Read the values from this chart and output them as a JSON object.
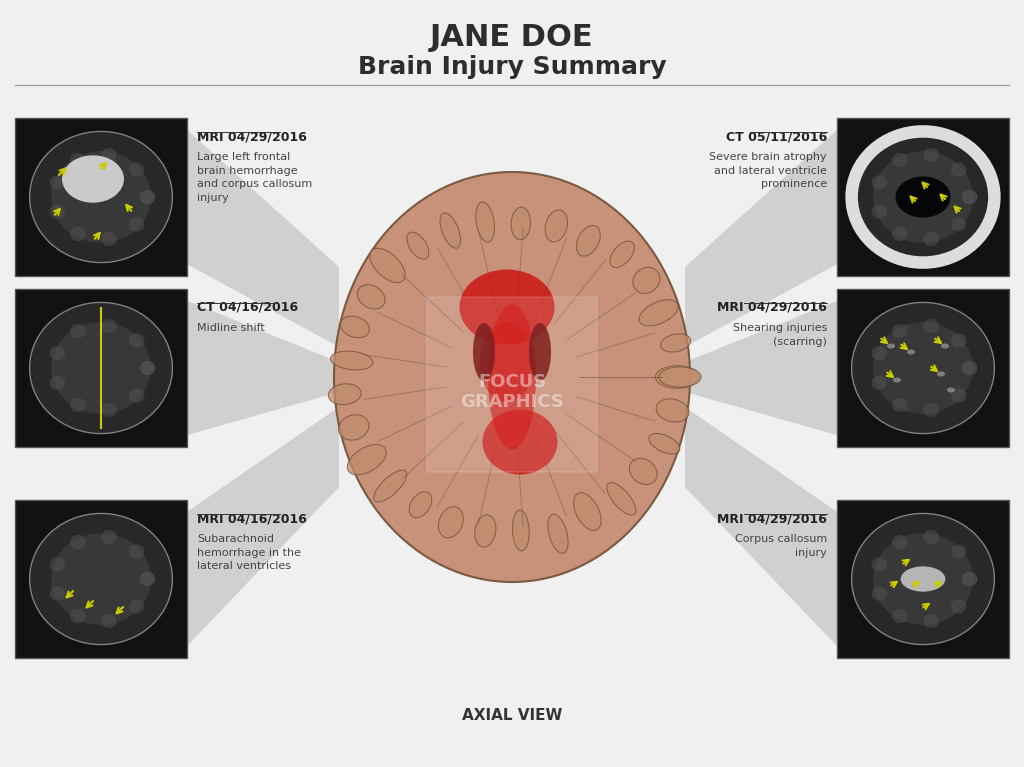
{
  "title_line1": "JANE DOE",
  "title_line2": "Brain Injury Summary",
  "title_color": "#2d2d2d",
  "background_color": "#f0f0f0",
  "left_panels": [
    {
      "label": "MRI 04/29/2016",
      "description": "Large left frontal\nbrain hemorrhage\nand corpus callosum\ninjury",
      "row": 0
    },
    {
      "label": "CT 04/16/2016",
      "description": "Midline shift",
      "row": 1
    },
    {
      "label": "MRI 04/16/2016",
      "description": "Subarachnoid\nhemorrhage in the\nlateral ventricles",
      "row": 2
    }
  ],
  "right_panels": [
    {
      "label": "CT 05/11/2016",
      "description": "Severe brain atrophy\nand lateral ventricle\nprominence",
      "row": 0
    },
    {
      "label": "MRI 04/29/2016",
      "description": "Shearing injuries\n(scarring)",
      "row": 1
    },
    {
      "label": "MRI 04/29/2016",
      "description": "Corpus callosum\ninjury",
      "row": 2
    }
  ],
  "axial_label": "AXIAL VIEW",
  "watermark_line1": "FOCUS",
  "watermark_line2": "GRAPHICS",
  "label_fontsize": 9,
  "desc_fontsize": 8,
  "title1_fontsize": 22,
  "title2_fontsize": 18,
  "axial_fontsize": 11,
  "label_color": "#222222",
  "desc_color": "#444444",
  "arrow_color": "#cccc00",
  "brain_center_color": "#c8917a",
  "injury_red": "#cc0000",
  "ray_color": "#aaaaaa"
}
